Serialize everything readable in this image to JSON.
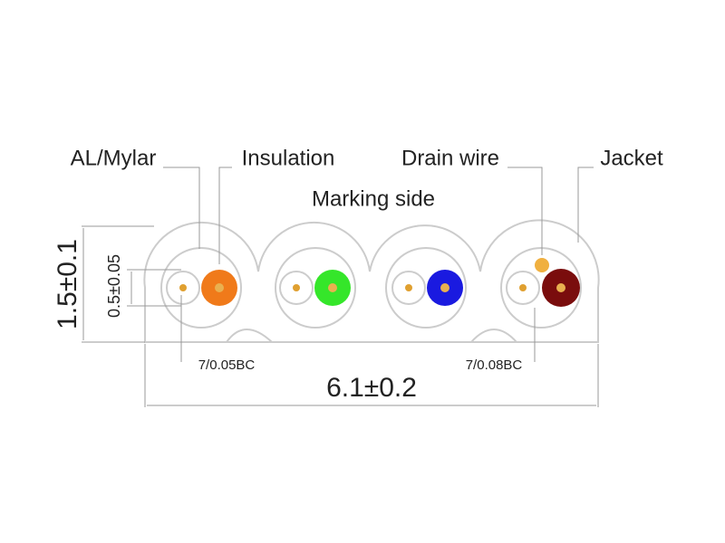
{
  "labels": {
    "al_mylar": "AL/Mylar",
    "insulation": "Insulation",
    "drain_wire": "Drain wire",
    "jacket": "Jacket",
    "marking_side": "Marking side"
  },
  "dimensions": {
    "height": "1.5±0.1",
    "drain_height": "0.5±0.05",
    "conductor_left": "7/0.05BC",
    "conductor_right": "7/0.08BC",
    "width": "6.1±0.2"
  }
}
